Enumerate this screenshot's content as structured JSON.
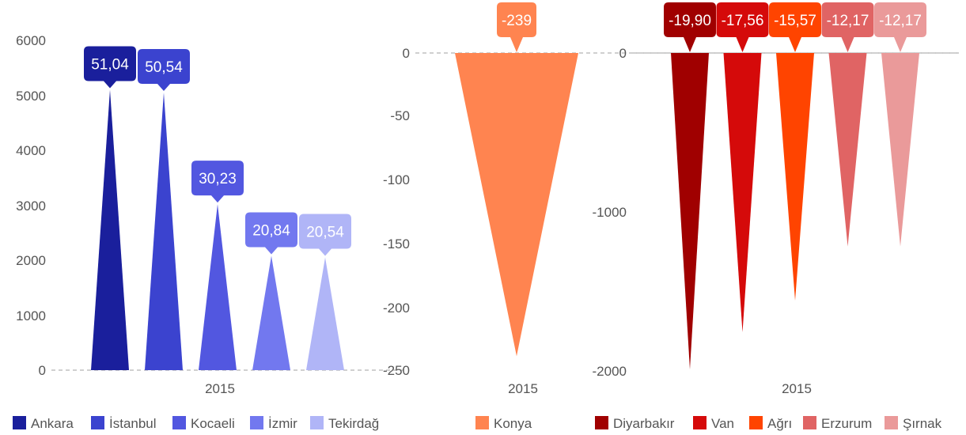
{
  "chart_data": [
    {
      "type": "bar",
      "shape": "triangle-spike",
      "categories": [
        "2015"
      ],
      "yticks": [
        "0",
        "1000",
        "2000",
        "3000",
        "4000",
        "5000",
        "6000"
      ],
      "ylim": [
        0,
        6000
      ],
      "grid": false,
      "legend_position": "bottom",
      "series": [
        {
          "name": "Ankara",
          "value": 5100,
          "label": "51,04",
          "color": "#1a1f9c"
        },
        {
          "name": "İstanbul",
          "value": 5050,
          "label": "50,54",
          "color": "#3b43cf"
        },
        {
          "name": "Kocaeli",
          "value": 3020,
          "label": "30,23",
          "color": "#5257e0"
        },
        {
          "name": "İzmir",
          "value": 2080,
          "label": "20,84",
          "color": "#7278ef"
        },
        {
          "name": "Tekirdağ",
          "value": 2050,
          "label": "20,54",
          "color": "#b0b5f7"
        }
      ]
    },
    {
      "type": "bar",
      "shape": "triangle-spike",
      "categories": [
        "2015"
      ],
      "yticks": [
        "0",
        "-50",
        "-100",
        "-150",
        "-200",
        "-250"
      ],
      "ylim": [
        -250,
        0
      ],
      "grid": false,
      "legend_position": "bottom",
      "series": [
        {
          "name": "Konya",
          "value": -239,
          "label": "-239",
          "color": "#ff8450"
        }
      ]
    },
    {
      "type": "bar",
      "shape": "triangle-spike",
      "categories": [
        "2015"
      ],
      "yticks": [
        "0",
        "-1000",
        "-2000"
      ],
      "ylim": [
        -2000,
        0
      ],
      "grid": false,
      "legend_position": "bottom",
      "series": [
        {
          "name": "Diyarbakır",
          "value": -1990,
          "label": "-19,90",
          "color": "#a00000"
        },
        {
          "name": "Van",
          "value": -1756,
          "label": "-17,56",
          "color": "#d50a0a"
        },
        {
          "name": "Ağrı",
          "value": -1557,
          "label": "-15,57",
          "color": "#ff4400"
        },
        {
          "name": "Erzurum",
          "value": -1217,
          "label": "-12,17",
          "color": "#e06464"
        },
        {
          "name": "Şırnak",
          "value": -1217,
          "label": "-12,17",
          "color": "#ea9a9a"
        }
      ]
    }
  ]
}
